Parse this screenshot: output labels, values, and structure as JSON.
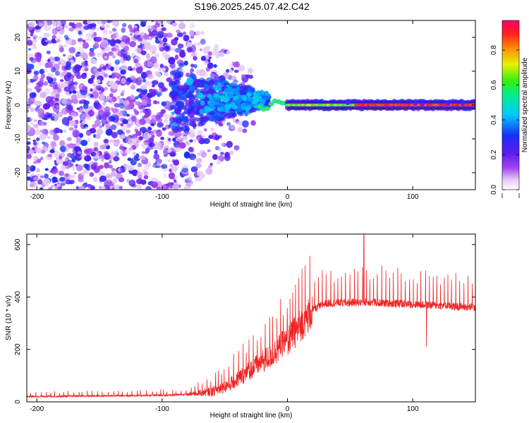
{
  "figure": {
    "title": "S196.2025.245.07.42.C42"
  },
  "chart_data": [
    {
      "type": "heatmap",
      "name": "spectrogram",
      "xlabel": "Height of straight line (km)",
      "ylabel": "Frequency (Hz)",
      "xlim": [
        -208,
        150
      ],
      "ylim": [
        -25,
        25
      ],
      "xticks": [
        -200,
        -100,
        0,
        100
      ],
      "yticks": [
        -20,
        -10,
        0,
        10,
        20
      ],
      "colorbar": {
        "label": "Normalized spectral amplitude",
        "range": [
          0.0,
          0.97
        ],
        "ticks": [
          0.0,
          0.2,
          0.4,
          0.6,
          0.8
        ],
        "tick_labels": [
          "0.0",
          "0.2",
          "0.4",
          "0.6",
          "0.8"
        ],
        "colormap": "rainbow: white-lavender (low) to violet, blue, cyan, green, yellow, orange, red, magenta (high)"
      },
      "description_points": {
        "signal_band_center_hz": 0,
        "signal_starts_km": -40,
        "noise_extent_km": [
          -208,
          -25
        ],
        "noise_dense_until_km": -80,
        "notable_peak": {
          "x": -78,
          "y": 7
        }
      }
    },
    {
      "type": "line",
      "name": "snr",
      "xlabel": "Height of straight line (km)",
      "ylabel": "SNR (10 * v/v)",
      "xlim": [
        -208,
        150
      ],
      "ylim": [
        0,
        640
      ],
      "xticks": [
        -200,
        -100,
        0,
        100
      ],
      "yticks": [
        0,
        200,
        400,
        600
      ],
      "color": "#ee2222",
      "profile": [
        {
          "x": -208,
          "y": 20
        },
        {
          "x": -100,
          "y": 25
        },
        {
          "x": -80,
          "y": 28
        },
        {
          "x": -60,
          "y": 40
        },
        {
          "x": -45,
          "y": 70
        },
        {
          "x": -30,
          "y": 120
        },
        {
          "x": -15,
          "y": 170
        },
        {
          "x": 0,
          "y": 230
        },
        {
          "x": 10,
          "y": 290
        },
        {
          "x": 20,
          "y": 350
        },
        {
          "x": 30,
          "y": 375
        },
        {
          "x": 60,
          "y": 380
        },
        {
          "x": 100,
          "y": 372
        },
        {
          "x": 150,
          "y": 360
        }
      ],
      "notable_peaks": [
        {
          "x": 61,
          "y": 640
        },
        {
          "x": 111,
          "y": 210
        }
      ]
    }
  ]
}
